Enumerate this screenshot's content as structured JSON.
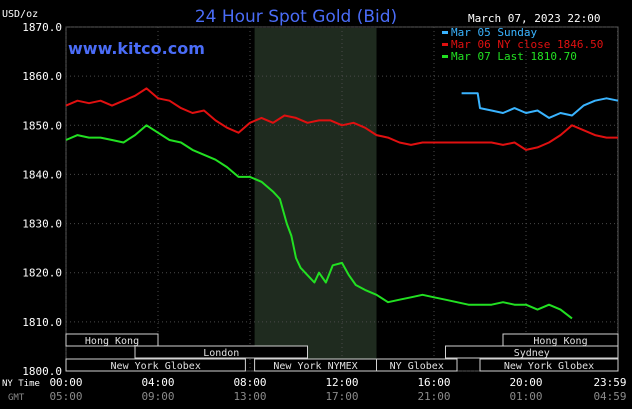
{
  "chart_data": {
    "type": "line",
    "title": "24 Hour Spot Gold (Bid)",
    "unit_label": "USD/oz",
    "datetime": "March 07, 2023 22:00",
    "watermark": "www.kitco.com",
    "ylim": [
      1800,
      1870
    ],
    "y_ticks": [
      "1870.0",
      "1860.0",
      "1850.0",
      "1840.0",
      "1830.0",
      "1820.0",
      "1810.0",
      "1800.0"
    ],
    "y_tick_values": [
      1870,
      1860,
      1850,
      1840,
      1830,
      1820,
      1810,
      1800
    ],
    "x_row_labels": {
      "ny": "NY Time",
      "gmt": "GMT"
    },
    "x_ticks_ny": [
      "00:00",
      "04:00",
      "08:00",
      "12:00",
      "16:00",
      "20:00",
      "23:59"
    ],
    "x_ticks_gmt": [
      "05:00",
      "09:00",
      "13:00",
      "17:00",
      "21:00",
      "01:00",
      "04:59"
    ],
    "x_tick_hours": [
      0,
      4,
      8,
      12,
      16,
      20,
      23.98
    ],
    "shaded_session_hours": [
      8.2,
      13.5
    ],
    "legend_placement": "top-right",
    "series": [
      {
        "name": "Mar 05 Sunday",
        "color": "#3ab4ff",
        "x": [
          17.2,
          17.9,
          18.0,
          18.5,
          19.0,
          19.5,
          20.0,
          20.5,
          21.0,
          21.5,
          22.0,
          22.5,
          23.0,
          23.5,
          24.0
        ],
        "y": [
          1856.5,
          1856.5,
          1853.5,
          1853.0,
          1852.5,
          1853.5,
          1852.5,
          1853.0,
          1851.5,
          1852.5,
          1852.0,
          1854.0,
          1855.0,
          1855.5,
          1855.0
        ]
      },
      {
        "name": "Mar 06 NY close 1846.50",
        "color": "#e01010",
        "x": [
          0,
          0.5,
          1.0,
          1.5,
          2.0,
          2.5,
          3.0,
          3.5,
          4.0,
          4.5,
          5.0,
          5.5,
          6.0,
          6.5,
          7.0,
          7.5,
          8.0,
          8.5,
          9.0,
          9.5,
          10.0,
          10.5,
          11.0,
          11.5,
          12.0,
          12.5,
          13.0,
          13.5,
          14.0,
          14.5,
          15.0,
          15.5,
          16.0,
          16.5,
          17.0,
          17.5,
          18.0,
          18.5,
          19.0,
          19.5,
          20.0,
          20.5,
          21.0,
          21.5,
          22.0,
          22.5,
          23.0,
          23.5,
          24.0
        ],
        "y": [
          1854.0,
          1855.0,
          1854.5,
          1855.0,
          1854.0,
          1855.0,
          1856.0,
          1857.5,
          1855.5,
          1855.0,
          1853.5,
          1852.5,
          1853.0,
          1851.0,
          1849.5,
          1848.5,
          1850.5,
          1851.5,
          1850.5,
          1852.0,
          1851.5,
          1850.5,
          1851.0,
          1851.0,
          1850.0,
          1850.5,
          1849.5,
          1848.0,
          1847.5,
          1846.5,
          1846.0,
          1846.5,
          1846.5,
          1846.5,
          1846.5,
          1846.5,
          1846.5,
          1846.5,
          1846.0,
          1846.5,
          1845.0,
          1845.5,
          1846.5,
          1848.0,
          1850.0,
          1849.0,
          1848.0,
          1847.5,
          1847.5
        ]
      },
      {
        "name": "Mar 07 Last 1810.70",
        "color": "#22e022",
        "x": [
          0,
          0.5,
          1.0,
          1.5,
          2.0,
          2.5,
          3.0,
          3.5,
          4.0,
          4.5,
          5.0,
          5.5,
          6.0,
          6.5,
          7.0,
          7.5,
          8.0,
          8.5,
          9.0,
          9.3,
          9.6,
          9.8,
          10.0,
          10.2,
          10.5,
          10.8,
          11.0,
          11.3,
          11.6,
          12.0,
          12.3,
          12.6,
          13.0,
          13.5,
          14.0,
          14.5,
          15.0,
          15.5,
          16.0,
          16.5,
          17.0,
          17.5,
          18.0,
          18.5,
          19.0,
          19.5,
          20.0,
          20.5,
          21.0,
          21.5,
          22.0
        ],
        "y": [
          1847.0,
          1848.0,
          1847.5,
          1847.5,
          1847.0,
          1846.5,
          1848.0,
          1850.0,
          1848.5,
          1847.0,
          1846.5,
          1845.0,
          1844.0,
          1843.0,
          1841.5,
          1839.5,
          1839.5,
          1838.5,
          1836.5,
          1835.0,
          1830.0,
          1827.5,
          1823.0,
          1821.0,
          1819.5,
          1818.0,
          1820.0,
          1818.0,
          1821.5,
          1822.0,
          1819.5,
          1817.5,
          1816.5,
          1815.5,
          1814.0,
          1814.5,
          1815.0,
          1815.5,
          1815.0,
          1814.5,
          1814.0,
          1813.5,
          1813.5,
          1813.5,
          1814.0,
          1813.5,
          1813.5,
          1812.5,
          1813.5,
          1812.5,
          1810.7
        ]
      }
    ],
    "sessions": [
      {
        "label": "Hong Kong",
        "start": 0,
        "end": 4.0,
        "row": 0
      },
      {
        "label": "London",
        "start": 3.0,
        "end": 10.5,
        "row": 1
      },
      {
        "label": "New York Globex",
        "start": 0,
        "end": 7.8,
        "row": 2
      },
      {
        "label": "New York NYMEX",
        "start": 8.2,
        "end": 13.5,
        "row": 2
      },
      {
        "label": "NY Globex",
        "start": 13.5,
        "end": 17.0,
        "row": 2
      },
      {
        "label": "Hong Kong",
        "start": 19.0,
        "end": 24.0,
        "row": 0
      },
      {
        "label": "Sydney",
        "start": 16.5,
        "end": 24.0,
        "row": 1
      },
      {
        "label": "New York Globex",
        "start": 18.0,
        "end": 24.0,
        "row": 2
      }
    ]
  }
}
